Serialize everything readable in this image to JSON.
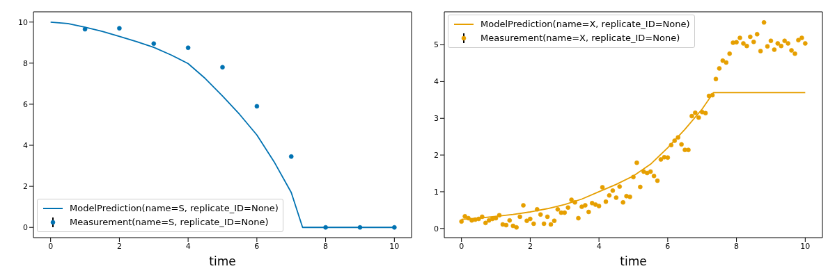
{
  "chart_data": [
    {
      "type": "line",
      "xlabel": "time",
      "xlim": [
        -0.5,
        10.5
      ],
      "xticks": [
        0,
        2,
        4,
        6,
        8,
        10
      ],
      "ylim": [
        -0.5,
        10.5
      ],
      "yticks": [
        0,
        2,
        4,
        6,
        8,
        10
      ],
      "grid": false,
      "legend": "bottom left",
      "line_style": "solid",
      "series": [
        {
          "name": "ModelPrediction(name=S, replicate_ID=None)",
          "color": "#0072b2",
          "x": [
            0,
            0.5,
            1,
            1.5,
            2,
            2.5,
            3,
            3.5,
            4,
            4.5,
            5,
            5.5,
            6,
            6.5,
            7,
            7.33,
            8,
            9,
            10
          ],
          "values": [
            10,
            9.93,
            9.75,
            9.55,
            9.3,
            9.05,
            8.77,
            8.4,
            7.98,
            7.25,
            6.4,
            5.5,
            4.5,
            3.2,
            1.7,
            0,
            0,
            0,
            0
          ]
        },
        {
          "type": "scatter",
          "name": "Measurement(name=S, replicate_ID=None)",
          "color": "#0072b2",
          "marker": "circle",
          "x": [
            1,
            2,
            3,
            4,
            5,
            6,
            7,
            8,
            9,
            10
          ],
          "values": [
            9.65,
            9.7,
            8.95,
            8.75,
            7.8,
            5.9,
            3.45,
            0,
            0,
            0
          ]
        }
      ]
    },
    {
      "type": "line",
      "xlabel": "time",
      "xlim": [
        -0.5,
        10.5
      ],
      "xticks": [
        0,
        2,
        4,
        6,
        8,
        10
      ],
      "ylim": [
        -0.25,
        5.9
      ],
      "yticks": [
        0,
        1,
        2,
        3,
        4,
        5
      ],
      "grid": false,
      "legend": "top left",
      "line_style": "solid",
      "series": [
        {
          "name": "ModelPrediction(name=X, replicate_ID=None)",
          "color": "#e69f00",
          "x": [
            0,
            0.5,
            1,
            1.5,
            2,
            2.5,
            3,
            3.5,
            4,
            4.5,
            5,
            5.5,
            6,
            6.5,
            7,
            7.33,
            8,
            9,
            10
          ],
          "values": [
            0.25,
            0.28,
            0.33,
            0.38,
            0.45,
            0.54,
            0.65,
            0.8,
            1.0,
            1.2,
            1.43,
            1.75,
            2.2,
            2.7,
            3.25,
            3.7,
            3.7,
            3.7,
            3.7
          ]
        },
        {
          "type": "scatter",
          "name": "Measurement(name=X, replicate_ID=None)",
          "color": "#e69f00",
          "marker": "circle",
          "x": [
            0,
            0.1,
            0.2,
            0.3,
            0.4,
            0.5,
            0.6,
            0.7,
            0.8,
            0.9,
            1,
            1.1,
            1.2,
            1.3,
            1.4,
            1.5,
            1.6,
            1.7,
            1.8,
            1.9,
            2,
            2.1,
            2.2,
            2.3,
            2.4,
            2.5,
            2.6,
            2.7,
            2.8,
            2.9,
            3,
            3.1,
            3.2,
            3.3,
            3.4,
            3.5,
            3.6,
            3.7,
            3.8,
            3.9,
            4,
            4.1,
            4.2,
            4.3,
            4.4,
            4.5,
            4.6,
            4.7,
            4.8,
            4.9,
            5,
            5.1,
            5.2,
            5.3,
            5.4,
            5.5,
            5.6,
            5.7,
            5.8,
            5.9,
            6,
            6.1,
            6.2,
            6.3,
            6.4,
            6.5,
            6.6,
            6.7,
            6.8,
            6.9,
            7,
            7.1,
            7.2,
            7.3,
            7.4,
            7.5,
            7.6,
            7.7,
            7.8,
            7.9,
            8,
            8.1,
            8.2,
            8.3,
            8.4,
            8.5,
            8.6,
            8.7,
            8.8,
            8.9,
            9,
            9.1,
            9.2,
            9.3,
            9.4,
            9.5,
            9.6,
            9.7,
            9.8,
            9.9,
            10
          ],
          "values": [
            0.19,
            0.33,
            0.28,
            0.22,
            0.24,
            0.26,
            0.32,
            0.15,
            0.22,
            0.26,
            0.28,
            0.36,
            0.11,
            0.09,
            0.22,
            0.07,
            0.03,
            0.32,
            0.63,
            0.21,
            0.26,
            0.13,
            0.52,
            0.38,
            0.13,
            0.32,
            0.11,
            0.21,
            0.52,
            0.43,
            0.43,
            0.57,
            0.78,
            0.71,
            0.28,
            0.59,
            0.63,
            0.45,
            0.69,
            0.65,
            0.61,
            1.12,
            0.73,
            0.9,
            1.03,
            0.84,
            1.14,
            0.71,
            0.88,
            0.86,
            1.4,
            1.79,
            1.13,
            1.55,
            1.51,
            1.55,
            1.43,
            1.3,
            1.88,
            1.94,
            1.93,
            2.27,
            2.39,
            2.48,
            2.29,
            2.14,
            2.14,
            3.06,
            3.15,
            3.02,
            3.17,
            3.14,
            3.61,
            3.63,
            4.07,
            4.36,
            4.57,
            4.52,
            4.76,
            5.06,
            5.07,
            5.19,
            5.04,
            4.97,
            5.22,
            5.08,
            5.29,
            4.83,
            5.61,
            4.96,
            5.11,
            4.87,
            5.04,
            4.97,
            5.11,
            5.04,
            4.85,
            4.76,
            5.13,
            5.19,
            5.04
          ]
        }
      ]
    }
  ]
}
